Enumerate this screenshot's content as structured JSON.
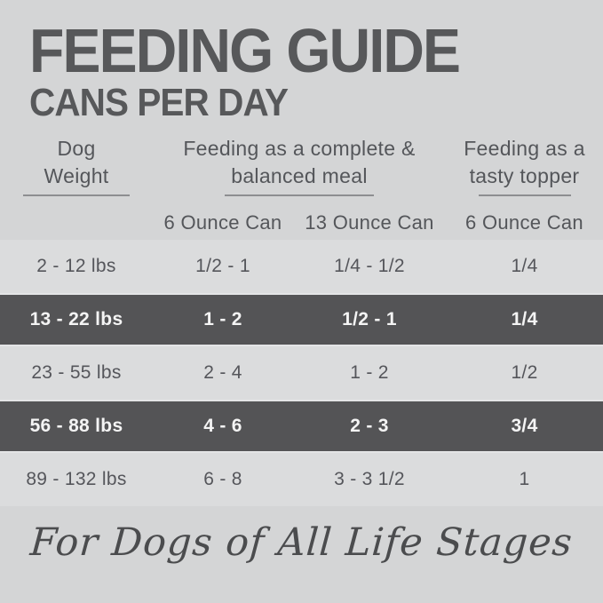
{
  "header": {
    "title": "FEEDING GUIDE",
    "subtitle": "CANS PER DAY"
  },
  "table": {
    "groups": [
      {
        "line1": "Dog",
        "line2": "Weight"
      },
      {
        "line1": "Feeding as a complete &",
        "line2": "balanced meal"
      },
      {
        "line1": "Feeding as a",
        "line2": "tasty topper"
      }
    ],
    "subheaders": [
      "6 Ounce Can",
      "13 Ounce Can",
      "6 Ounce Can"
    ],
    "rows": [
      {
        "weight": "2 - 12 lbs",
        "meal_6oz": "1/2 - 1",
        "meal_13oz": "1/4 - 1/2",
        "topper_6oz": "1/4",
        "highlighted": false
      },
      {
        "weight": "13 - 22 lbs",
        "meal_6oz": "1 - 2",
        "meal_13oz": "1/2 - 1",
        "topper_6oz": "1/4",
        "highlighted": true
      },
      {
        "weight": "23 - 55 lbs",
        "meal_6oz": "2 - 4",
        "meal_13oz": "1 - 2",
        "topper_6oz": "1/2",
        "highlighted": false
      },
      {
        "weight": "56 - 88 lbs",
        "meal_6oz": "4 - 6",
        "meal_13oz": "2 - 3",
        "topper_6oz": "3/4",
        "highlighted": true
      },
      {
        "weight": "89 - 132 lbs",
        "meal_6oz": "6 - 8",
        "meal_13oz": "3 - 3 1/2",
        "topper_6oz": "1",
        "highlighted": false
      }
    ]
  },
  "footer": {
    "script_text": "For Dogs of All Life Stages"
  },
  "colors": {
    "background": "#d4d5d6",
    "row_light": "#dbdcdd",
    "row_highlight": "#545456",
    "text_dark": "#57585a",
    "text_on_highlight": "#f4f4f4",
    "rule_gray": "#8d8e91"
  }
}
